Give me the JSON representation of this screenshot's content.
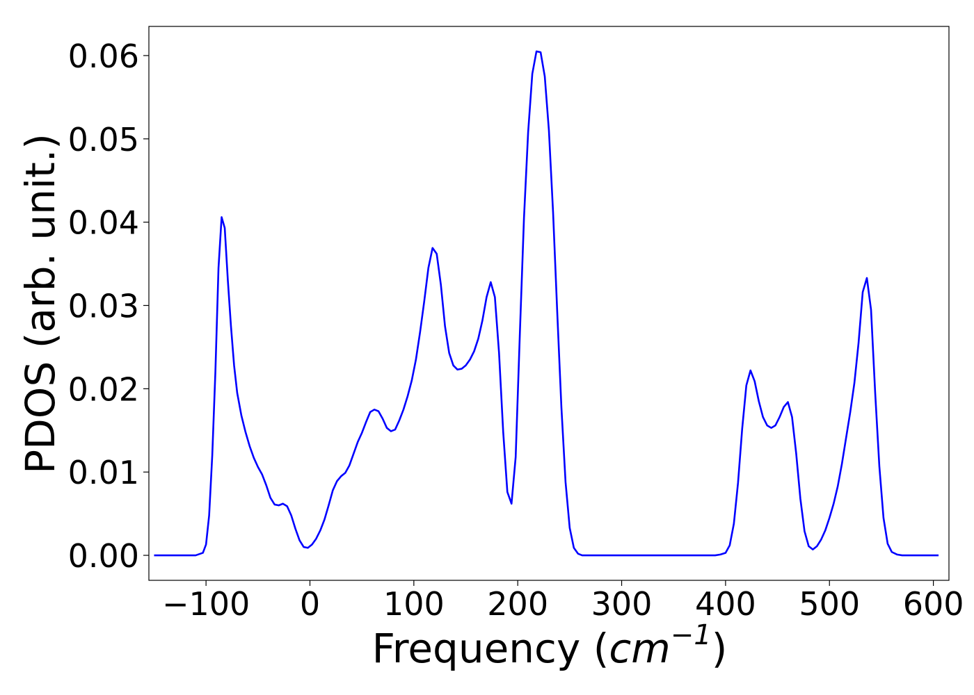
{
  "chart_data": {
    "type": "line",
    "xlabel_text": "Frequency (",
    "xlabel_math_base": "cm",
    "xlabel_math_exp": "−1",
    "xlabel_close": ")",
    "ylabel": "PDOS (arb. unit.)",
    "xlim": [
      -155,
      615
    ],
    "ylim": [
      -0.003,
      0.0635
    ],
    "x_ticks": [
      -100,
      0,
      100,
      200,
      300,
      400,
      500,
      600
    ],
    "x_tick_labels": [
      "−100",
      "0",
      "100",
      "200",
      "300",
      "400",
      "500",
      "600"
    ],
    "y_ticks": [
      0.0,
      0.01,
      0.02,
      0.03,
      0.04,
      0.05,
      0.06
    ],
    "y_tick_labels": [
      "0.00",
      "0.01",
      "0.02",
      "0.03",
      "0.04",
      "0.05",
      "0.06"
    ],
    "grid": false,
    "series": [
      {
        "color": "#0000ff",
        "x": [
          -150,
          -140,
          -130,
          -120,
          -110,
          -103,
          -100,
          -97,
          -94,
          -91,
          -88,
          -85,
          -82,
          -79,
          -76,
          -73,
          -70,
          -66,
          -62,
          -58,
          -54,
          -50,
          -46,
          -42,
          -38,
          -34,
          -30,
          -26,
          -22,
          -18,
          -14,
          -10,
          -6,
          -2,
          2,
          6,
          10,
          14,
          18,
          22,
          26,
          30,
          34,
          38,
          42,
          46,
          50,
          54,
          58,
          62,
          66,
          70,
          74,
          78,
          82,
          86,
          90,
          94,
          98,
          102,
          106,
          110,
          114,
          118,
          122,
          126,
          130,
          134,
          138,
          142,
          146,
          150,
          154,
          158,
          162,
          166,
          170,
          174,
          178,
          182,
          186,
          190,
          194,
          198,
          202,
          206,
          210,
          214,
          218,
          222,
          226,
          230,
          234,
          238,
          242,
          246,
          250,
          254,
          258,
          262,
          266,
          270,
          280,
          300,
          330,
          360,
          390,
          395,
          400,
          404,
          408,
          412,
          416,
          420,
          424,
          428,
          432,
          436,
          440,
          444,
          448,
          452,
          456,
          460,
          464,
          468,
          472,
          476,
          480,
          484,
          488,
          492,
          496,
          500,
          504,
          508,
          512,
          516,
          520,
          524,
          528,
          532,
          536,
          540,
          544,
          548,
          552,
          556,
          560,
          565,
          570,
          580,
          590,
          600,
          605
        ],
        "y": [
          0.0,
          0.0,
          0.0,
          0.0,
          0.0,
          0.0003,
          0.0013,
          0.0048,
          0.012,
          0.022,
          0.0345,
          0.0406,
          0.0393,
          0.033,
          0.0275,
          0.0228,
          0.0195,
          0.0168,
          0.0148,
          0.0131,
          0.0117,
          0.0106,
          0.0097,
          0.0084,
          0.0069,
          0.0061,
          0.006,
          0.0062,
          0.0059,
          0.0048,
          0.0032,
          0.0018,
          0.001,
          0.0009,
          0.0013,
          0.002,
          0.003,
          0.0043,
          0.006,
          0.0078,
          0.0089,
          0.0095,
          0.0099,
          0.0108,
          0.0122,
          0.0136,
          0.0147,
          0.016,
          0.0172,
          0.0175,
          0.0173,
          0.0164,
          0.0153,
          0.0149,
          0.0151,
          0.0162,
          0.0175,
          0.0191,
          0.021,
          0.0235,
          0.0268,
          0.0305,
          0.0345,
          0.0369,
          0.0362,
          0.0325,
          0.0275,
          0.0243,
          0.0228,
          0.0223,
          0.0224,
          0.0228,
          0.0235,
          0.0245,
          0.026,
          0.0282,
          0.031,
          0.0328,
          0.031,
          0.0243,
          0.0148,
          0.0076,
          0.0062,
          0.0118,
          0.0265,
          0.0405,
          0.0508,
          0.0578,
          0.0605,
          0.0604,
          0.0575,
          0.051,
          0.0412,
          0.0292,
          0.0178,
          0.0088,
          0.0033,
          0.0009,
          0.0002,
          0.0,
          0.0,
          0.0,
          0.0,
          0.0,
          0.0,
          0.0,
          0.0,
          0.0001,
          0.0003,
          0.0012,
          0.0038,
          0.0087,
          0.0152,
          0.0204,
          0.0222,
          0.0209,
          0.0185,
          0.0166,
          0.0156,
          0.0153,
          0.0156,
          0.0166,
          0.0178,
          0.0184,
          0.0166,
          0.0122,
          0.0068,
          0.0029,
          0.0011,
          0.0007,
          0.0011,
          0.0019,
          0.003,
          0.0045,
          0.0062,
          0.0083,
          0.011,
          0.0141,
          0.0172,
          0.0207,
          0.0255,
          0.0316,
          0.0333,
          0.0295,
          0.0195,
          0.0107,
          0.0045,
          0.0014,
          0.0004,
          0.0001,
          0.0,
          0.0,
          0.0,
          0.0,
          0.0
        ]
      }
    ]
  }
}
